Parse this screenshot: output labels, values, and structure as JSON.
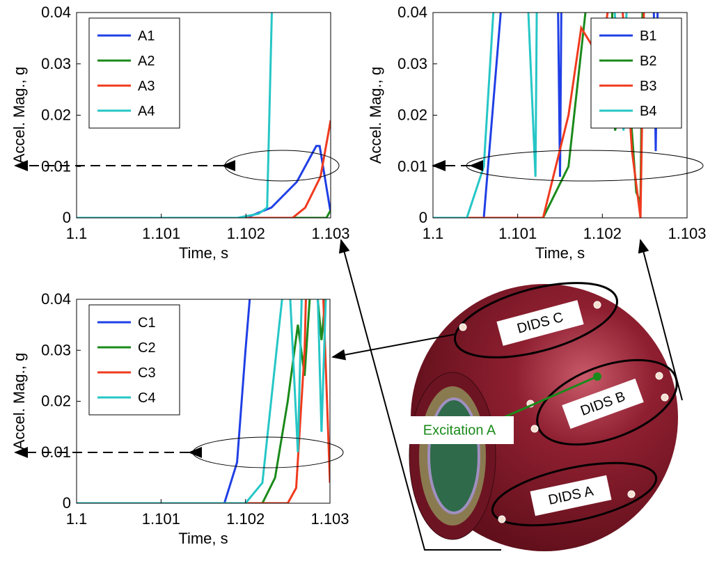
{
  "chart_data": [
    {
      "type": "line",
      "x_label": "Time, s",
      "y_label": "Accel. Mag., g",
      "xlim": [
        1.1,
        1.103
      ],
      "ylim": [
        0,
        0.04
      ],
      "xticks": [
        1.1,
        1.101,
        1.102,
        1.103
      ],
      "yticks": [
        0,
        0.01,
        0.02,
        0.03,
        0.04
      ],
      "legend": "upper left",
      "series": [
        {
          "name": "A1",
          "color": "#1f3fe6",
          "x": [
            1.1,
            1.102,
            1.1023,
            1.1026,
            1.10283,
            1.10287,
            1.103
          ],
          "values": [
            0,
            0,
            0.002,
            0.007,
            0.014,
            0.014,
            0.001
          ]
        },
        {
          "name": "A2",
          "color": "#1a8a1a",
          "x": [
            1.1,
            1.10295,
            1.103
          ],
          "values": [
            0,
            0,
            0.0015
          ]
        },
        {
          "name": "A3",
          "color": "#f03a1e",
          "x": [
            1.1,
            1.10255,
            1.1027,
            1.10288,
            1.103
          ],
          "values": [
            0,
            0,
            0.002,
            0.008,
            0.019
          ]
        },
        {
          "name": "A4",
          "color": "#26c6c6",
          "x": [
            1.1,
            1.1019,
            1.10215,
            1.10225,
            1.10232
          ],
          "values": [
            0,
            0,
            0.0008,
            0.002,
            0.05
          ]
        }
      ]
    },
    {
      "type": "line",
      "x_label": "Time, s",
      "y_label": "Accel. Mag., g",
      "xlim": [
        1.1,
        1.103
      ],
      "ylim": [
        0,
        0.04
      ],
      "xticks": [
        1.1,
        1.101,
        1.102,
        1.103
      ],
      "yticks": [
        0,
        0.01,
        0.02,
        0.03,
        0.04
      ],
      "legend": "upper right",
      "series": [
        {
          "name": "B1",
          "color": "#1f3fe6",
          "x": [
            1.1,
            1.1006,
            1.10085,
            1.10147,
            1.1015,
            1.10152,
            1.1026,
            1.10263,
            1.10266
          ],
          "values": [
            0,
            0,
            0.05,
            0.05,
            0.008,
            0.05,
            0.05,
            0.013,
            0.05
          ]
        },
        {
          "name": "B2",
          "color": "#1a8a1a",
          "x": [
            1.1,
            1.1013,
            1.1016,
            1.1018,
            1.1019,
            1.1021,
            1.10215,
            1.1023,
            1.1024,
            1.10245,
            1.10248
          ],
          "values": [
            0,
            0,
            0.01,
            0.04,
            0.05,
            0.05,
            0.017,
            0.028,
            0.005,
            0.003,
            0.05
          ]
        },
        {
          "name": "B3",
          "color": "#f03a1e",
          "x": [
            1.1,
            1.1013,
            1.1016,
            1.10175,
            1.1019,
            1.102,
            1.10215,
            1.1022,
            1.10235,
            1.10245,
            1.1025
          ],
          "values": [
            0,
            0,
            0.02,
            0.037,
            0.033,
            0.033,
            0.05,
            0.05,
            0.013,
            0,
            0.05
          ]
        },
        {
          "name": "B4",
          "color": "#26c6c6",
          "x": [
            1.1,
            1.1004,
            1.1006,
            1.10075,
            1.1011,
            1.10121,
            1.10123,
            1.1021,
            1.10225,
            1.1023
          ],
          "values": [
            0,
            0,
            0.01,
            0.05,
            0.05,
            0.008,
            0.05,
            0.05,
            0.017,
            0.05
          ]
        }
      ]
    },
    {
      "type": "line",
      "x_label": "Time, s",
      "y_label": "Accel. Mag., g",
      "xlim": [
        1.1,
        1.103
      ],
      "ylim": [
        0,
        0.04
      ],
      "xticks": [
        1.1,
        1.101,
        1.102,
        1.103
      ],
      "yticks": [
        0,
        0.01,
        0.02,
        0.03,
        0.04
      ],
      "legend": "upper left",
      "series": [
        {
          "name": "C1",
          "color": "#1f3fe6",
          "x": [
            1.1,
            1.10175,
            1.1019,
            1.102,
            1.1021
          ],
          "values": [
            0,
            0,
            0.008,
            0.03,
            0.05
          ]
        },
        {
          "name": "C2",
          "color": "#1a8a1a",
          "x": [
            1.1,
            1.1022,
            1.10235,
            1.1025,
            1.10262,
            1.1027,
            1.1028,
            1.1029,
            1.103
          ],
          "values": [
            0,
            0,
            0.005,
            0.02,
            0.035,
            0.025,
            0.05,
            0.032,
            0.05
          ]
        },
        {
          "name": "C3",
          "color": "#f03a1e",
          "x": [
            1.1,
            1.1025,
            1.1026,
            1.1027,
            1.10273,
            1.1029,
            1.103
          ],
          "values": [
            0,
            0,
            0.003,
            0.03,
            0.05,
            0.05,
            0.004
          ]
        },
        {
          "name": "C4",
          "color": "#26c6c6",
          "x": [
            1.1,
            1.102,
            1.1022,
            1.1024,
            1.1025,
            1.10262,
            1.10268,
            1.10284,
            1.1029,
            1.10297
          ],
          "values": [
            0,
            0,
            0.004,
            0.035,
            0.05,
            0.01,
            0.05,
            0.05,
            0.014,
            0.05
          ]
        }
      ]
    }
  ],
  "diagram": {
    "labels": [
      "DIDS C",
      "DIDS B",
      "DIDS A",
      "Excitation A"
    ]
  }
}
